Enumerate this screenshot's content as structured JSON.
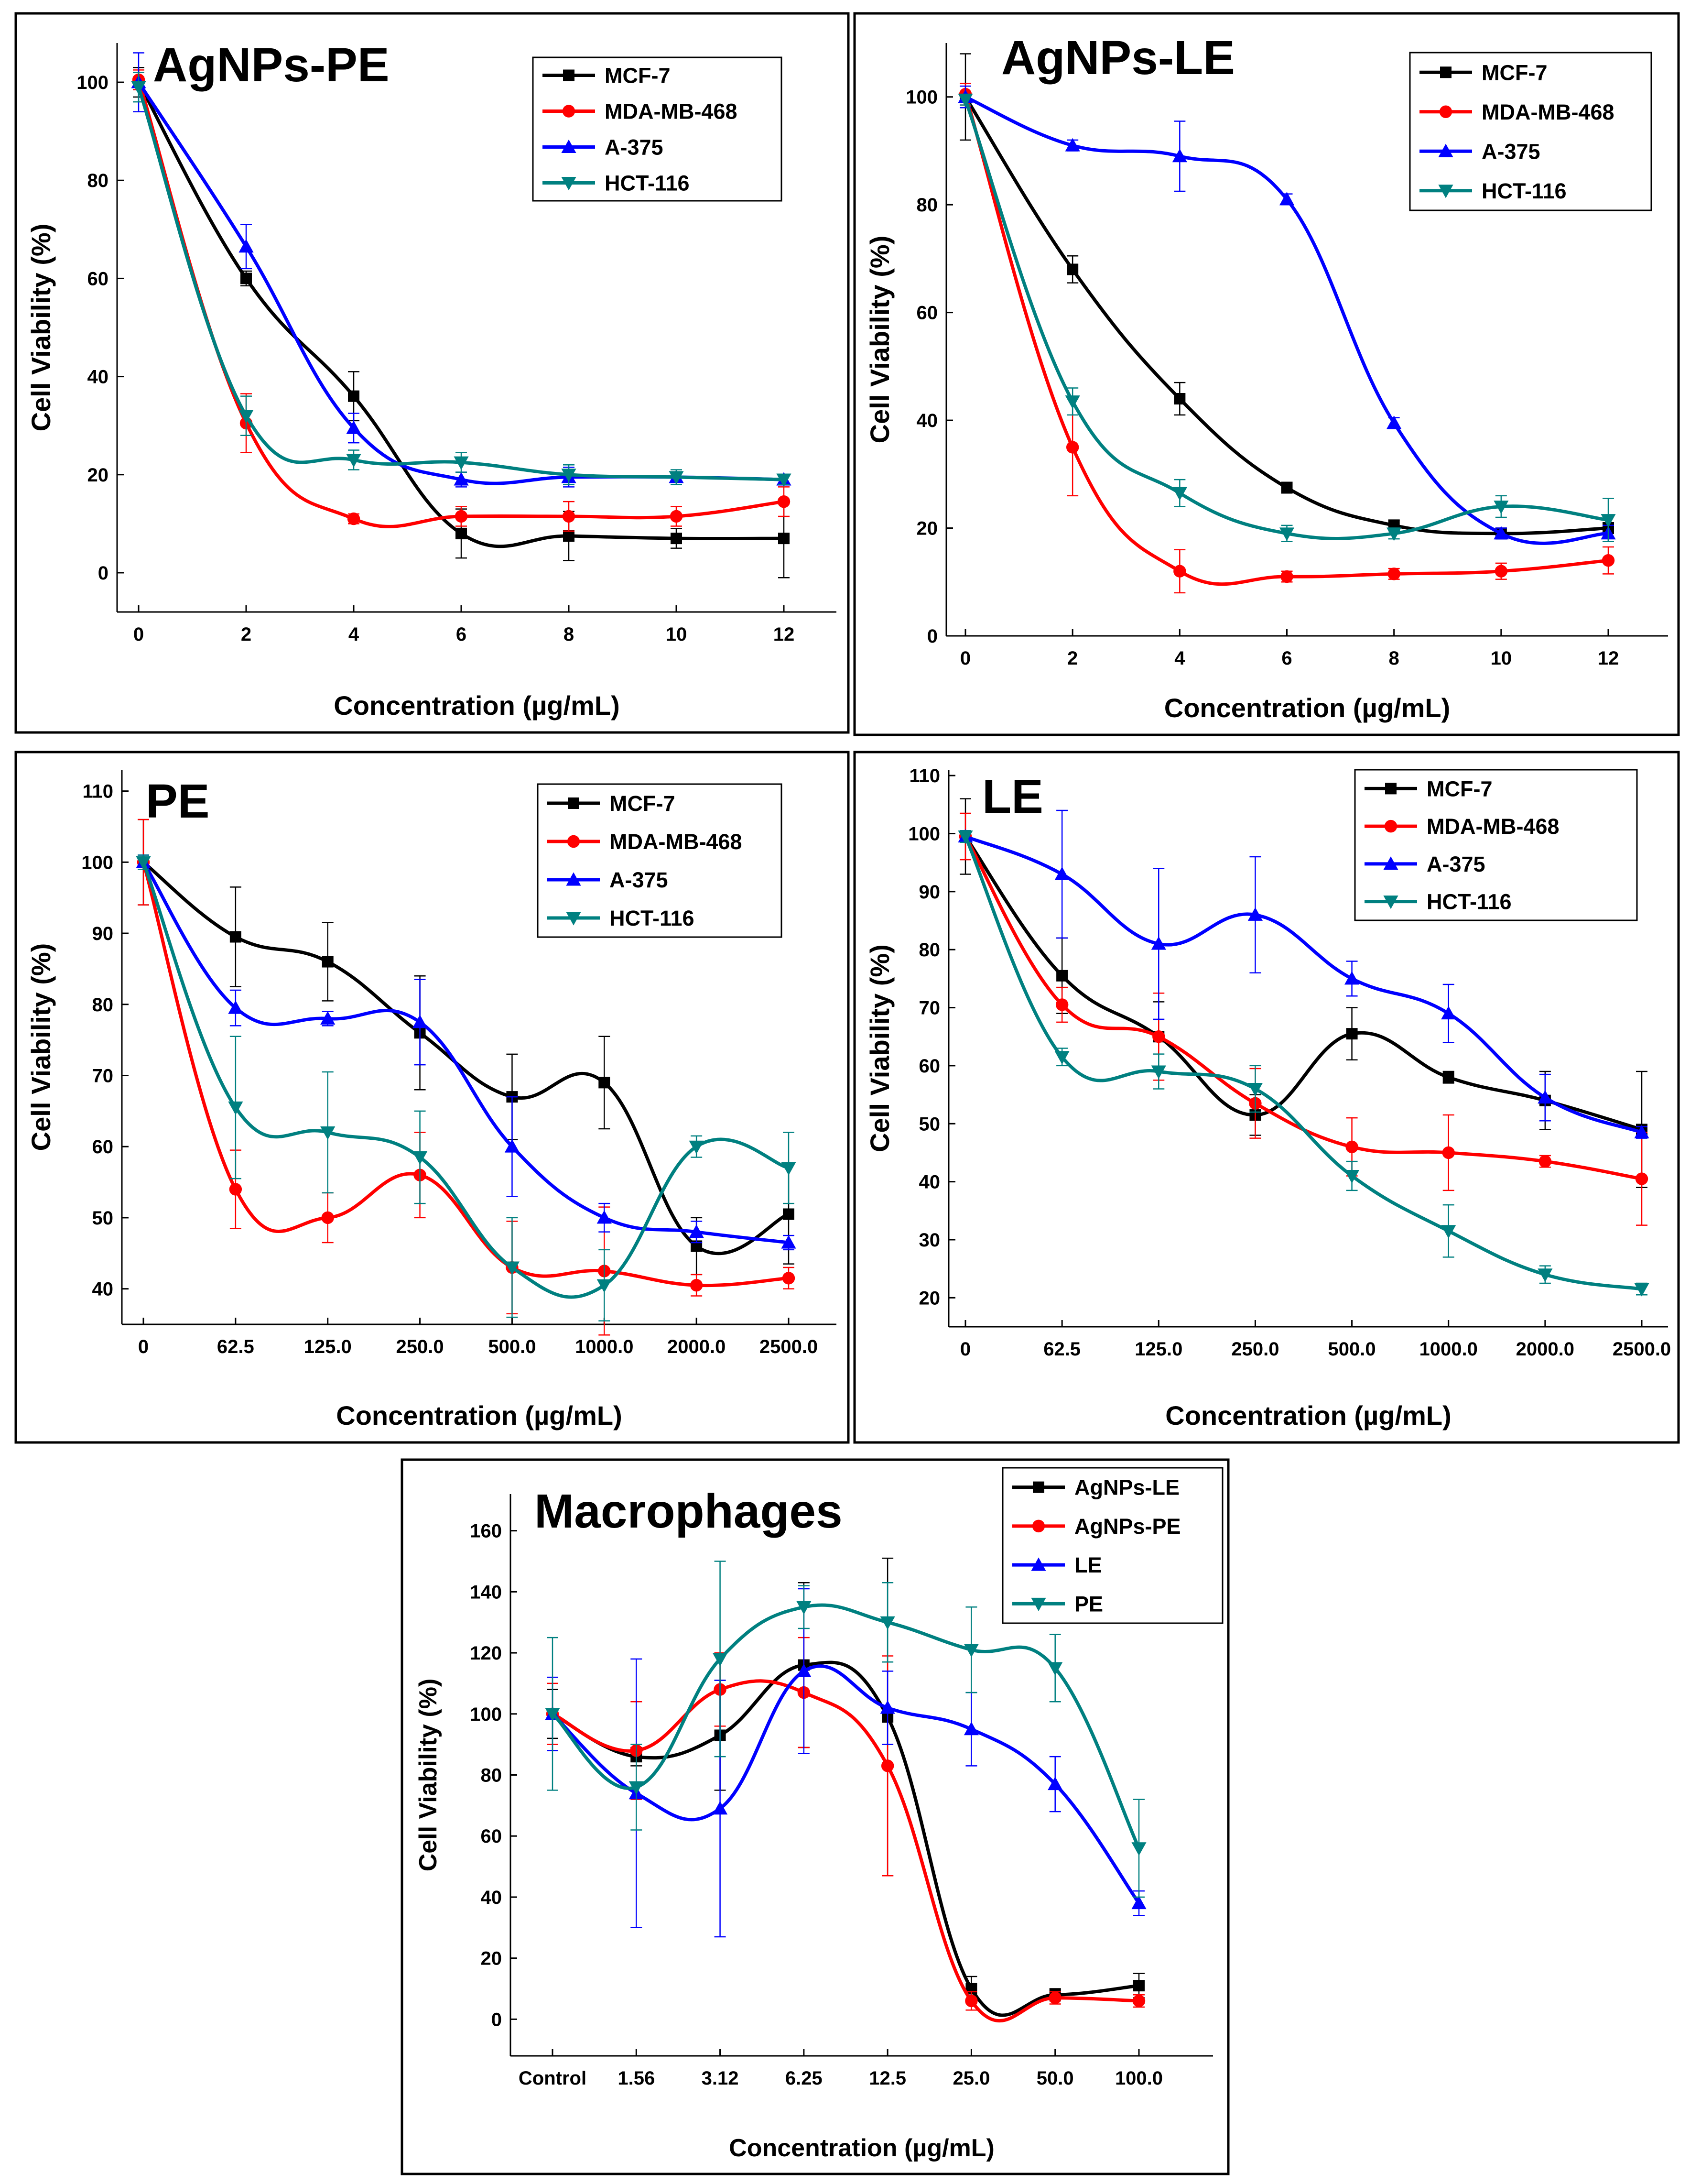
{
  "figure": {
    "panels_count": 5
  },
  "chart_data": [
    {
      "id": "p1",
      "type": "line",
      "title": "AgNPs-PE",
      "xlabel": "Concentration (µg/mL)",
      "ylabel": "Cell Viability (%)",
      "categories": [
        "0",
        "2",
        "4",
        "6",
        "8",
        "10",
        "12"
      ],
      "yticks": [
        0,
        20,
        40,
        60,
        80,
        100
      ],
      "ylim": [
        -8,
        108
      ],
      "legend_position": "top-right",
      "series": [
        {
          "name": "MCF-7",
          "color": "#000000",
          "marker": "square",
          "values": [
            100,
            60,
            36,
            8,
            7.5,
            7,
            7
          ],
          "errors": [
            3,
            1.5,
            5,
            5,
            5,
            2,
            8
          ]
        },
        {
          "name": "MDA-MB-468",
          "color": "#ff0000",
          "marker": "circle",
          "values": [
            100.5,
            30.5,
            11,
            11.5,
            11.5,
            11.5,
            14.5
          ],
          "errors": [
            2,
            6,
            1,
            2,
            3,
            2,
            3
          ]
        },
        {
          "name": "A-375",
          "color": "#0000ff",
          "marker": "triangle-up",
          "values": [
            100,
            66.5,
            29.5,
            19,
            19.5,
            19.5,
            19
          ],
          "errors": [
            6,
            4.5,
            3,
            1.5,
            2,
            1,
            1
          ]
        },
        {
          "name": "HCT-116",
          "color": "#008080",
          "marker": "triangle-down",
          "values": [
            99,
            32,
            23,
            22.5,
            20,
            19.5,
            19
          ],
          "errors": [
            3,
            4,
            2,
            2,
            2,
            1.5,
            1
          ]
        }
      ]
    },
    {
      "id": "p2",
      "type": "line",
      "title": "AgNPs-LE",
      "xlabel": "Concentration (µg/mL)",
      "ylabel": "Cell Viability (%)",
      "categories": [
        "0",
        "2",
        "4",
        "6",
        "8",
        "10",
        "12"
      ],
      "yticks": [
        0,
        20,
        40,
        60,
        80,
        100
      ],
      "ylim": [
        0,
        110
      ],
      "legend_position": "top-right",
      "series": [
        {
          "name": "MCF-7",
          "color": "#000000",
          "marker": "square",
          "values": [
            100,
            68,
            44,
            27.5,
            20.5,
            19,
            20
          ],
          "errors": [
            8,
            2.5,
            3,
            1,
            1,
            1,
            1
          ]
        },
        {
          "name": "MDA-MB-468",
          "color": "#ff0000",
          "marker": "circle",
          "values": [
            100.5,
            35,
            12,
            11,
            11.5,
            12,
            14
          ],
          "errors": [
            2,
            9,
            4,
            1,
            1,
            1.5,
            2.5
          ]
        },
        {
          "name": "A-375",
          "color": "#0000ff",
          "marker": "triangle-up",
          "values": [
            100,
            91,
            89,
            81,
            39.5,
            19,
            19
          ],
          "errors": [
            2,
            1,
            6.5,
            1,
            1,
            1,
            1.5
          ]
        },
        {
          "name": "HCT-116",
          "color": "#008080",
          "marker": "triangle-down",
          "values": [
            99.5,
            43.5,
            26.5,
            19,
            19,
            24,
            21.5
          ],
          "errors": [
            1,
            2.5,
            2.5,
            1.5,
            1,
            2,
            4
          ]
        }
      ]
    },
    {
      "id": "p3",
      "type": "line",
      "title": "PE",
      "xlabel": "Concentration (µg/mL)",
      "ylabel": "Cell Viability (%)",
      "categories": [
        "0",
        "62.5",
        "125.0",
        "250.0",
        "500.0",
        "1000.0",
        "2000.0",
        "2500.0"
      ],
      "yticks": [
        40,
        50,
        60,
        70,
        80,
        90,
        100,
        110
      ],
      "ylim": [
        35,
        113
      ],
      "legend_position": "top-right",
      "series": [
        {
          "name": "MCF-7",
          "color": "#000000",
          "marker": "square",
          "values": [
            100,
            89.5,
            86,
            76,
            67,
            69,
            46,
            50.5
          ],
          "errors": [
            6,
            7,
            5.5,
            8,
            6,
            6.5,
            4,
            7
          ]
        },
        {
          "name": "MDA-MB-468",
          "color": "#ff0000",
          "marker": "circle",
          "values": [
            100,
            54,
            50,
            56,
            43,
            42.5,
            40.5,
            41.5
          ],
          "errors": [
            6,
            5.5,
            3.5,
            6,
            6.5,
            9,
            1.5,
            1.5
          ]
        },
        {
          "name": "A-375",
          "color": "#0000ff",
          "marker": "triangle-up",
          "values": [
            100,
            79.5,
            78,
            77.5,
            60,
            50,
            48,
            46.5
          ],
          "errors": [
            1,
            2.5,
            1,
            6,
            7,
            2,
            1.5,
            1
          ]
        },
        {
          "name": "HCT-116",
          "color": "#008080",
          "marker": "triangle-down",
          "values": [
            100,
            65.5,
            62,
            58.5,
            43,
            40.5,
            60,
            57
          ],
          "errors": [
            1,
            10,
            8.5,
            6.5,
            7,
            5,
            1.5,
            5
          ]
        }
      ]
    },
    {
      "id": "p4",
      "type": "line",
      "title": "LE",
      "xlabel": "Concentration (µg/mL)",
      "ylabel": "Cell Viability (%)",
      "categories": [
        "0",
        "62.5",
        "125.0",
        "250.0",
        "500.0",
        "1000.0",
        "2000.0",
        "2500.0"
      ],
      "yticks": [
        20,
        30,
        40,
        50,
        60,
        70,
        80,
        90,
        100,
        110
      ],
      "ylim": [
        15,
        111
      ],
      "legend_position": "top-right",
      "series": [
        {
          "name": "MCF-7",
          "color": "#000000",
          "marker": "square",
          "values": [
            99.5,
            75.5,
            65,
            51.5,
            65.5,
            58,
            54,
            49
          ],
          "errors": [
            6.5,
            6.5,
            6,
            3.5,
            4.5,
            1,
            5,
            10
          ]
        },
        {
          "name": "MDA-MB-468",
          "color": "#ff0000",
          "marker": "circle",
          "values": [
            99.5,
            70.5,
            65,
            53.5,
            46,
            45,
            43.5,
            40.5
          ],
          "errors": [
            4,
            3,
            7.5,
            6,
            5,
            6.5,
            1,
            8
          ]
        },
        {
          "name": "A-375",
          "color": "#0000ff",
          "marker": "triangle-up",
          "values": [
            99.5,
            93,
            81,
            86,
            75,
            69,
            54.5,
            48.5
          ],
          "errors": [
            1,
            11,
            13,
            10,
            3,
            5,
            4,
            1
          ]
        },
        {
          "name": "HCT-116",
          "color": "#008080",
          "marker": "triangle-down",
          "values": [
            99.5,
            61.5,
            59,
            56,
            41,
            31.5,
            24,
            21.5
          ],
          "errors": [
            1,
            1.5,
            3,
            4,
            2.5,
            4.5,
            1.5,
            1
          ]
        }
      ]
    },
    {
      "id": "p5",
      "type": "line",
      "title": "Macrophages",
      "xlabel": "Concentration (µg/mL)",
      "ylabel": "Cell Viability (%)",
      "categories": [
        "Control",
        "1.56",
        "3.12",
        "6.25",
        "12.5",
        "25.0",
        "50.0",
        "100.0"
      ],
      "yticks": [
        0,
        20,
        40,
        60,
        80,
        100,
        120,
        140,
        160
      ],
      "ylim": [
        -12,
        172
      ],
      "legend_position": "top-right",
      "series": [
        {
          "name": "AgNPs-LE",
          "color": "#000000",
          "marker": "square",
          "values": [
            100,
            86,
            93,
            116,
            99,
            10,
            8,
            11
          ],
          "errors": [
            8,
            3,
            18,
            27,
            52,
            4,
            2,
            4
          ]
        },
        {
          "name": "AgNPs-PE",
          "color": "#ff0000",
          "marker": "circle",
          "values": [
            100,
            88,
            108,
            107,
            83,
            6,
            7,
            6
          ],
          "errors": [
            10,
            16,
            12,
            18,
            36,
            3,
            2,
            2
          ]
        },
        {
          "name": "LE",
          "color": "#0000ff",
          "marker": "triangle-up",
          "values": [
            100,
            74,
            69,
            114,
            102,
            95,
            77,
            38
          ],
          "errors": [
            12,
            44,
            42,
            27,
            12,
            12,
            9,
            4
          ]
        },
        {
          "name": "PE",
          "color": "#008080",
          "marker": "triangle-down",
          "values": [
            100,
            76,
            118,
            135,
            130,
            121,
            115,
            56
          ],
          "errors": [
            25,
            14,
            32,
            7,
            13,
            14,
            11,
            16
          ]
        }
      ]
    }
  ]
}
